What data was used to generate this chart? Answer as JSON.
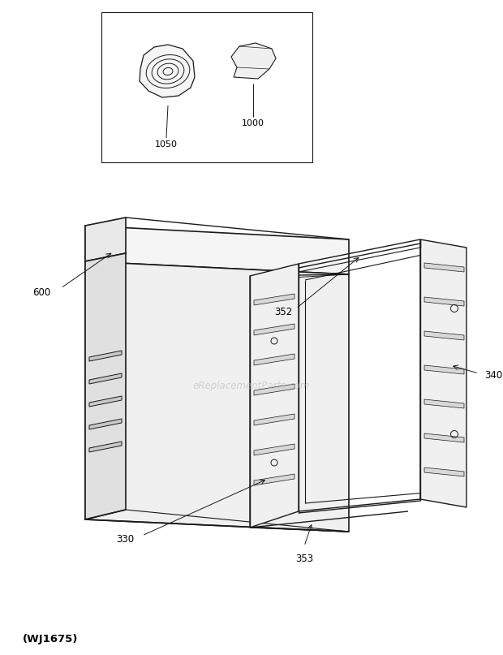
{
  "bg_color": "#ffffff",
  "line_color": "#1a1a1a",
  "title_bottom": "(WJ1675)",
  "watermark": "eReplacementParts.com",
  "figsize": [
    6.2,
    8.07
  ],
  "dpi": 100
}
